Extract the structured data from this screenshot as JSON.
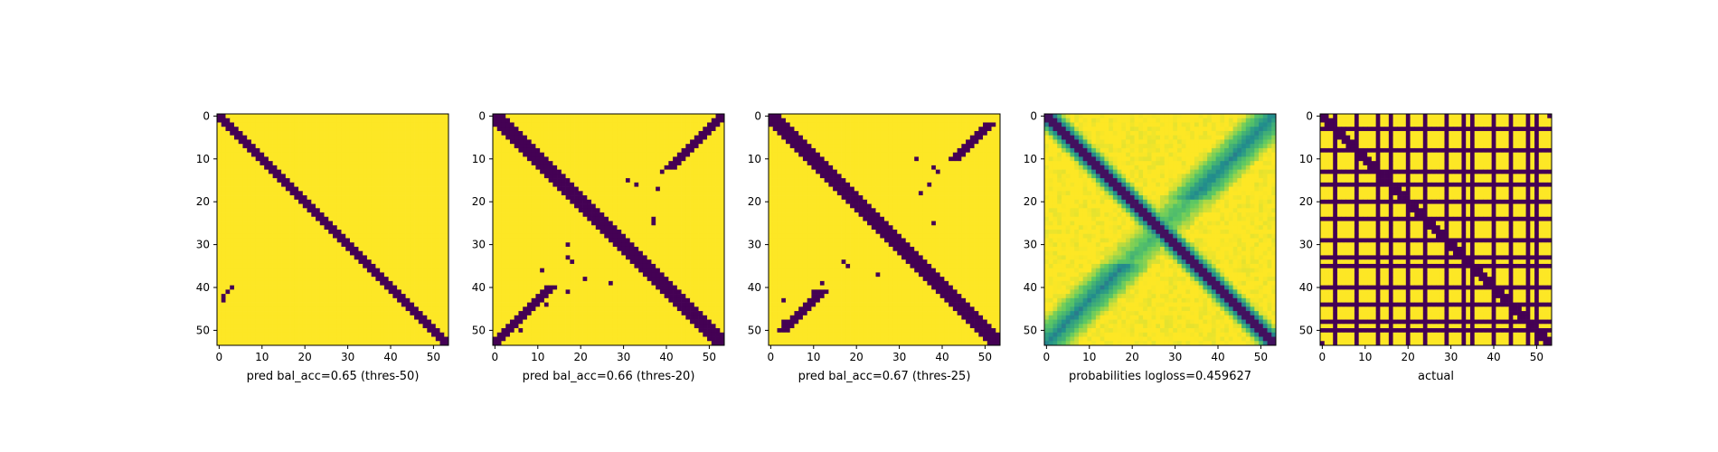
{
  "chart_data": [
    {
      "type": "heatmap",
      "colormap": "viridis",
      "values": "binary",
      "size": 54,
      "xlabel": "pred bal_acc=0.65 (thres-50)",
      "xticks": [
        0,
        10,
        20,
        30,
        40,
        50
      ],
      "yticks": [
        0,
        10,
        20,
        30,
        40,
        50
      ],
      "diagonal_band": {
        "start_col": 0,
        "end_col": 53,
        "half_width": 1.6
      },
      "anti_diagonal_band": null,
      "isolated_points": [
        [
          42,
          1
        ],
        [
          40,
          3
        ],
        [
          41,
          2
        ],
        [
          39,
          40
        ],
        [
          43,
          1
        ]
      ]
    },
    {
      "type": "heatmap",
      "colormap": "viridis",
      "values": "binary",
      "size": 54,
      "xlabel": "pred bal_acc=0.66 (thres-20)",
      "xticks": [
        0,
        10,
        20,
        30,
        40,
        50
      ],
      "yticks": [
        0,
        10,
        20,
        30,
        40,
        50
      ],
      "diagonal_band": {
        "start_col": 0,
        "end_col": 53,
        "half_width": 2.4
      },
      "anti_diagonal_band": {
        "segments": [
          [
            0,
            12
          ],
          [
            40,
            53
          ]
        ],
        "half_width": 1.2
      },
      "isolated_points": [
        [
          15,
          31
        ],
        [
          16,
          33
        ],
        [
          13,
          39
        ],
        [
          12,
          40
        ],
        [
          17,
          38
        ],
        [
          24,
          37
        ],
        [
          25,
          37
        ],
        [
          30,
          17
        ],
        [
          33,
          17
        ],
        [
          34,
          18
        ],
        [
          38,
          21
        ],
        [
          39,
          27
        ],
        [
          36,
          11
        ],
        [
          40,
          14
        ],
        [
          41,
          17
        ],
        [
          44,
          12
        ],
        [
          50,
          6
        ]
      ]
    },
    {
      "type": "heatmap",
      "colormap": "viridis",
      "values": "binary",
      "size": 54,
      "xlabel": "pred bal_acc=0.67 (thres-25)",
      "xticks": [
        0,
        10,
        20,
        30,
        40,
        50
      ],
      "yticks": [
        0,
        10,
        20,
        30,
        40,
        50
      ],
      "diagonal_band": {
        "start_col": 0,
        "end_col": 53,
        "half_width": 2.2
      },
      "anti_diagonal_band": {
        "segments": [
          [
            2,
            10
          ],
          [
            41,
            50
          ]
        ],
        "half_width": 1.0
      },
      "isolated_points": [
        [
          10,
          34
        ],
        [
          12,
          38
        ],
        [
          13,
          39
        ],
        [
          16,
          37
        ],
        [
          18,
          35
        ],
        [
          25,
          38
        ],
        [
          34,
          17
        ],
        [
          35,
          18
        ],
        [
          37,
          25
        ],
        [
          39,
          12
        ],
        [
          41,
          10
        ],
        [
          42,
          11
        ],
        [
          43,
          3
        ],
        [
          48,
          3
        ],
        [
          50,
          3
        ]
      ]
    },
    {
      "type": "heatmap",
      "colormap": "viridis",
      "values": "continuous",
      "size": 54,
      "xlabel": "probabilities logloss=0.459627",
      "xticks": [
        0,
        10,
        20,
        30,
        40,
        50
      ],
      "yticks": [
        0,
        10,
        20,
        30,
        40,
        50
      ],
      "diagonal_band": {
        "start_col": 0,
        "end_col": 53,
        "half_width": 2.0
      },
      "anti_diagonal_band": {
        "segments": [
          [
            0,
            53
          ]
        ],
        "half_width": 3.0
      },
      "isolated_points": []
    },
    {
      "type": "heatmap",
      "colormap": "viridis",
      "values": "binary",
      "size": 54,
      "xlabel": "actual",
      "xticks": [
        0,
        10,
        20,
        30,
        40,
        50
      ],
      "yticks": [
        0,
        10,
        20,
        30,
        40,
        50
      ],
      "diagonal_band": {
        "start_col": 0,
        "end_col": 53,
        "half_width": 1.8
      },
      "anti_diagonal_band": null,
      "grid_lines": [
        3,
        8,
        13,
        16,
        20,
        24,
        29,
        33,
        35,
        40,
        44,
        48,
        50
      ],
      "isolated_points": [
        [
          53,
          0
        ],
        [
          0,
          53
        ]
      ]
    }
  ],
  "colors": {
    "low": "#440154",
    "high": "#fde725"
  }
}
